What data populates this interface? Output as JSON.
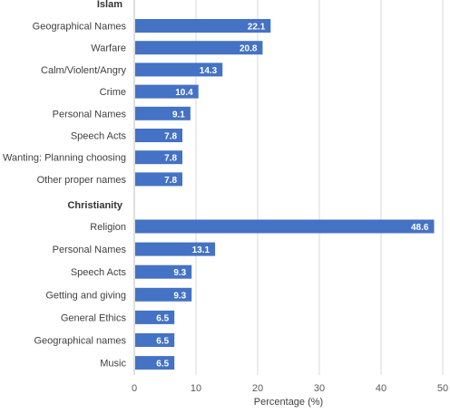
{
  "chart_data": {
    "type": "bar",
    "orientation": "horizontal",
    "xlabel": "Percentage (%)",
    "xlim": [
      0,
      50
    ],
    "xticks": [
      0,
      10,
      20,
      30,
      40,
      50
    ],
    "grid": true,
    "bar_color": "#4472c4",
    "groups": [
      {
        "name": "Islam",
        "categories": [
          "Geographical Names",
          "Warfare",
          "Calm/Violent/Angry",
          "Crime",
          "Personal Names",
          "Speech Acts",
          "Wanting: Planning choosing",
          "Other proper names"
        ],
        "values": [
          22.1,
          20.8,
          14.3,
          10.4,
          9.1,
          7.8,
          7.8,
          7.8
        ]
      },
      {
        "name": "Christianity",
        "categories": [
          "Religion",
          "Personal Names",
          "Speech Acts",
          "Getting and giving",
          "General Ethics",
          "Geographical names",
          "Music"
        ],
        "values": [
          48.6,
          13.1,
          9.3,
          9.3,
          6.5,
          6.5,
          6.5
        ]
      }
    ]
  }
}
